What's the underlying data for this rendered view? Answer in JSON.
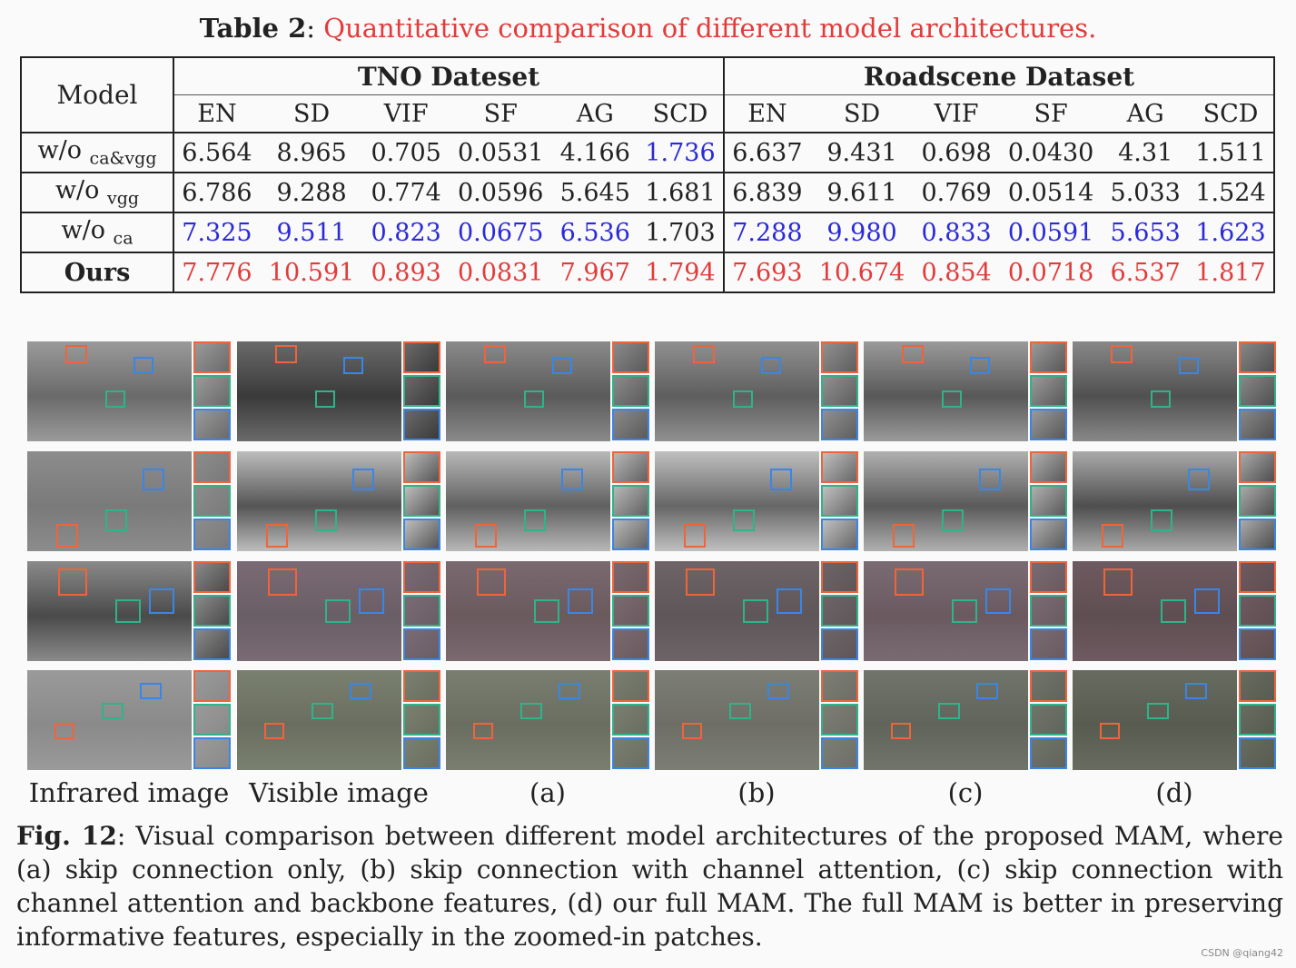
{
  "table_title_prefix": "Table 2",
  "table_title_sep": ": ",
  "table_title_text": "Quantitative comparison of different model architectures.",
  "table": {
    "model_header": "Model",
    "groups": [
      "TNO Dateset",
      "Roadscene Dataset"
    ],
    "metrics": [
      "EN",
      "SD",
      "VIF",
      "SF",
      "AG",
      "SCD",
      "EN",
      "SD",
      "VIF",
      "SF",
      "AG",
      "SCD"
    ],
    "rows": [
      {
        "name": "w/o",
        "sub": "ca&vgg",
        "values": [
          "6.564",
          "8.965",
          "0.705",
          "0.0531",
          "4.166",
          "1.736",
          "6.637",
          "9.431",
          "0.698",
          "0.0430",
          "4.31",
          "1.511"
        ]
      },
      {
        "name": "w/o",
        "sub": "vgg",
        "values": [
          "6.786",
          "9.288",
          "0.774",
          "0.0596",
          "5.645",
          "1.681",
          "6.839",
          "9.611",
          "0.769",
          "0.0514",
          "5.033",
          "1.524"
        ]
      },
      {
        "name": "w/o",
        "sub": "ca",
        "values": [
          "7.325",
          "9.511",
          "0.823",
          "0.0675",
          "6.536",
          "1.703",
          "7.288",
          "9.980",
          "0.833",
          "0.0591",
          "5.653",
          "1.623"
        ]
      },
      {
        "name": "Ours",
        "sub": "",
        "values": [
          "7.776",
          "10.591",
          "0.893",
          "0.0831",
          "7.967",
          "1.794",
          "7.693",
          "10.674",
          "0.854",
          "0.0718",
          "6.537",
          "1.817"
        ]
      }
    ]
  },
  "column_labels": [
    "Infrared image",
    "Visible image",
    "(a)",
    "(b)",
    "(c)",
    "(d)"
  ],
  "figure_caption_prefix": "Fig. 12",
  "figure_caption_text": ": Visual comparison between different model architectures of the proposed MAM, where (a) skip connection only, (b) skip connection with channel attention, (c) skip connection with channel attention and backbone features, (d) our full MAM. The full MAM is better in preserving informative features, especially in the zoomed-in patches.",
  "watermark": "CSDN @qiang42",
  "colors": {
    "orange": "#f0643a",
    "blue": "#3a86e6",
    "green": "#2eb38a",
    "red": "#e23b3b",
    "bold_blue": "#2a2ad8"
  }
}
